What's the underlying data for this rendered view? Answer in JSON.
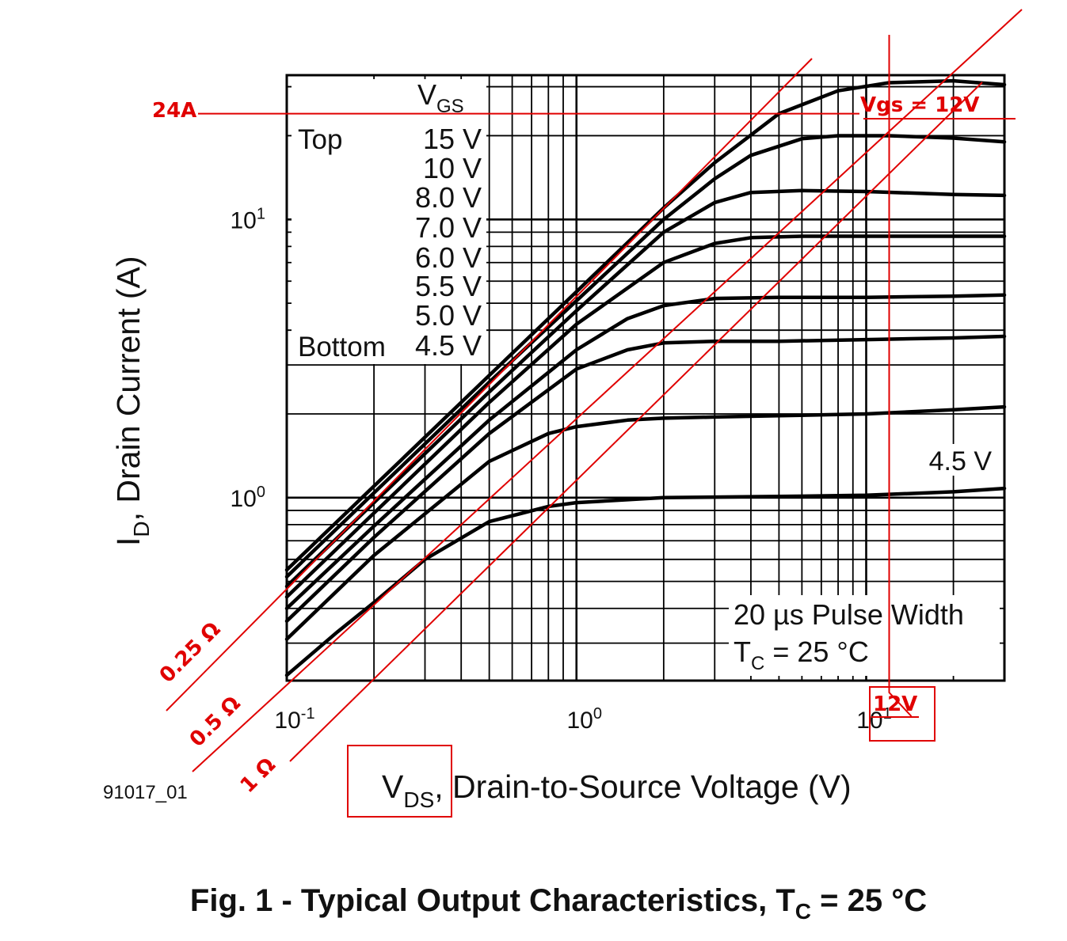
{
  "chart_data": {
    "type": "line",
    "scale": "log-log",
    "xlim": [
      0.1,
      30
    ],
    "ylim": [
      0.22,
      33
    ],
    "x_tick_labels": [
      {
        "base": "10",
        "exp": "-1",
        "value": 0.1
      },
      {
        "base": "10",
        "exp": "0",
        "value": 1
      },
      {
        "base": "10",
        "exp": "1",
        "value": 10
      }
    ],
    "y_tick_labels": [
      {
        "base": "10",
        "exp": "0",
        "value": 1
      },
      {
        "base": "10",
        "exp": "1",
        "value": 10
      }
    ],
    "ylabel": {
      "main": "I",
      "sub": "D",
      "rest": ", Drain Current (A)"
    },
    "xlabel": {
      "main": "V",
      "sub": "DS",
      "rest": ", Drain-to-Source Voltage (V)"
    },
    "legend": {
      "header_main": "V",
      "header_sub": "GS",
      "top_label": "Top",
      "bottom_label": "Bottom",
      "entries": [
        "15 V",
        "10 V",
        "8.0 V",
        "7.0 V",
        "6.0 V",
        "5.5 V",
        "5.0 V",
        "4.5 V"
      ]
    },
    "curve_label": "4.5 V",
    "note_line1": "20 µs Pulse Width",
    "note_line2_main": "T",
    "note_line2_sub": "C",
    "note_line2_rest": " = 25 °C",
    "series": [
      {
        "name": "15 V",
        "x": [
          0.1,
          0.2,
          0.5,
          1,
          2,
          3,
          5,
          8,
          12,
          20,
          30
        ],
        "y": [
          0.55,
          1.1,
          2.75,
          5.5,
          11,
          16,
          24,
          29,
          31,
          31.5,
          30.5
        ]
      },
      {
        "name": "10 V",
        "x": [
          0.1,
          0.2,
          0.5,
          1,
          2,
          3,
          4,
          6,
          8,
          12,
          20,
          30
        ],
        "y": [
          0.52,
          1.04,
          2.6,
          5.1,
          10,
          14,
          17,
          19.5,
          20,
          20,
          19.6,
          19
        ]
      },
      {
        "name": "8.0 V",
        "x": [
          0.1,
          0.2,
          0.5,
          1,
          2,
          3,
          4,
          6,
          10,
          20,
          30
        ],
        "y": [
          0.48,
          0.96,
          2.4,
          4.7,
          9,
          11.5,
          12.5,
          12.7,
          12.6,
          12.3,
          12.2
        ]
      },
      {
        "name": "7.0 V",
        "x": [
          0.1,
          0.2,
          0.5,
          1,
          2,
          3,
          4,
          6,
          10,
          20,
          30
        ],
        "y": [
          0.44,
          0.88,
          2.2,
          4.2,
          7,
          8.2,
          8.6,
          8.7,
          8.7,
          8.7,
          8.7
        ]
      },
      {
        "name": "6.0 V",
        "x": [
          0.1,
          0.2,
          0.5,
          1,
          1.5,
          2,
          3,
          5,
          10,
          20,
          30
        ],
        "y": [
          0.4,
          0.79,
          1.9,
          3.4,
          4.4,
          4.9,
          5.2,
          5.25,
          5.25,
          5.3,
          5.35
        ]
      },
      {
        "name": "5.5 V",
        "x": [
          0.1,
          0.2,
          0.5,
          1,
          1.5,
          2,
          3,
          5,
          10,
          20,
          30
        ],
        "y": [
          0.36,
          0.72,
          1.7,
          2.9,
          3.4,
          3.6,
          3.65,
          3.65,
          3.7,
          3.75,
          3.8
        ]
      },
      {
        "name": "5.0 V",
        "x": [
          0.1,
          0.2,
          0.5,
          0.8,
          1,
          1.5,
          2,
          3,
          5,
          10,
          20,
          30
        ],
        "y": [
          0.31,
          0.62,
          1.35,
          1.7,
          1.8,
          1.9,
          1.93,
          1.95,
          1.97,
          2.0,
          2.07,
          2.12
        ]
      },
      {
        "name": "4.5 V",
        "x": [
          0.1,
          0.15,
          0.2,
          0.3,
          0.5,
          0.8,
          1,
          2,
          5,
          10,
          20,
          30
        ],
        "y": [
          0.23,
          0.33,
          0.42,
          0.6,
          0.82,
          0.93,
          0.96,
          1.0,
          1.01,
          1.02,
          1.05,
          1.08
        ]
      }
    ],
    "annotations": {
      "hline_label": "24A",
      "hline_value": 24,
      "vgs_label": "Vgs = 12V",
      "vline_label": "12V",
      "vline_value": 12,
      "resistance_lines": [
        {
          "label": "0.25 Ω",
          "ohms": 0.25
        },
        {
          "label": "0.5 Ω",
          "ohms": 0.5
        },
        {
          "label": "1 Ω",
          "ohms": 1
        }
      ]
    },
    "fig_id": "91017_01",
    "title": {
      "prefix": "Fig. 1 - Typical Output Characteristics, T",
      "sub": "C",
      "suffix": " = 25 °C"
    }
  }
}
